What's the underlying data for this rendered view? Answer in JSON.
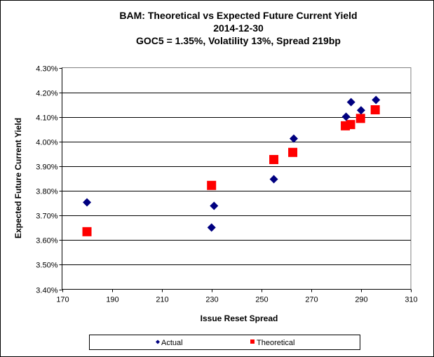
{
  "chart_data": {
    "type": "scatter",
    "title": [
      "BAM: Theoretical vs Expected Future Current Yield",
      "2014-12-30",
      "GOC5 = 1.35%, Volatility 13%, Spread 219bp"
    ],
    "xlabel": "Issue Reset Spread",
    "ylabel": "Expected Future Current Yield",
    "xlim": [
      170,
      310
    ],
    "ylim": [
      3.4,
      4.3
    ],
    "xticks": [
      "170",
      "190",
      "210",
      "230",
      "250",
      "270",
      "290",
      "310"
    ],
    "yticks": [
      "3.40%",
      "3.50%",
      "3.60%",
      "3.70%",
      "3.80%",
      "3.90%",
      "4.00%",
      "4.10%",
      "4.20%",
      "4.30%"
    ],
    "grid": "horizontal",
    "legend_placement": "bottom",
    "series": [
      {
        "name": "Actual",
        "marker": "diamond",
        "color": "#000080",
        "points": [
          [
            180,
            3.753
          ],
          [
            231,
            3.739
          ],
          [
            230,
            3.651
          ],
          [
            255,
            3.847
          ],
          [
            263,
            4.012
          ],
          [
            284,
            4.101
          ],
          [
            286,
            4.16
          ],
          [
            290,
            4.127
          ],
          [
            296,
            4.169
          ]
        ]
      },
      {
        "name": "Theoretical",
        "marker": "square",
        "color": "#ff0000",
        "points": [
          [
            180,
            3.634
          ],
          [
            230,
            3.822
          ],
          [
            255,
            3.927
          ],
          [
            262.6,
            3.956
          ],
          [
            283.7,
            4.064
          ],
          [
            285.8,
            4.069
          ],
          [
            289.8,
            4.094
          ],
          [
            295.7,
            4.129
          ]
        ]
      }
    ]
  }
}
